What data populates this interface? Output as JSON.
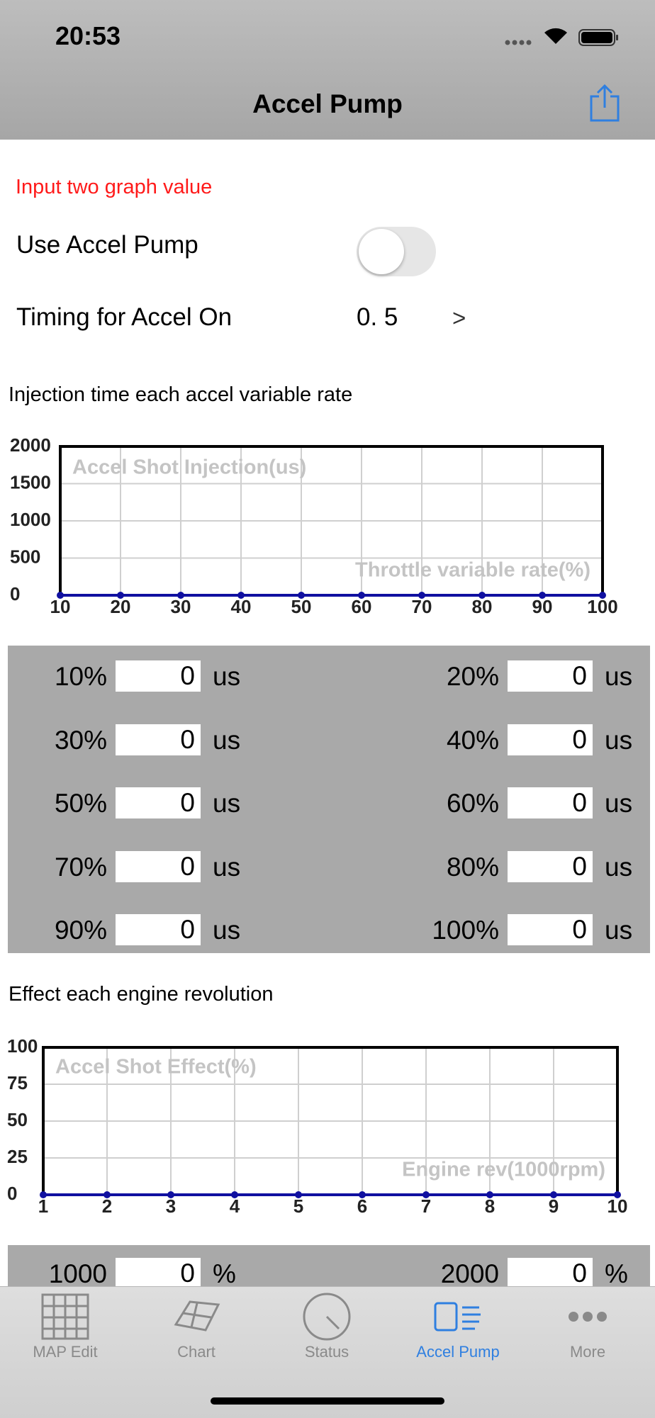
{
  "status_bar": {
    "time": "20:53"
  },
  "nav": {
    "title": "Accel Pump"
  },
  "notice": "Input two graph value",
  "settings": [
    {
      "label": "Use Accel Pump",
      "on": false
    },
    {
      "label": "Timing for Accel On",
      "value": "0. 5",
      "chevron": ">"
    }
  ],
  "charts": [
    {
      "type": "line",
      "title": "Injection time each accel variable rate",
      "y_label": "Accel Shot Injection(us)",
      "x_label": "Throttle variable rate(%)",
      "x": [
        10,
        20,
        30,
        40,
        50,
        60,
        70,
        80,
        90,
        100
      ],
      "values": [
        0,
        0,
        0,
        0,
        0,
        0,
        0,
        0,
        0,
        0
      ],
      "xlim": [
        10,
        100
      ],
      "xticks": [
        10,
        20,
        30,
        40,
        50,
        60,
        70,
        80,
        90,
        100
      ],
      "ylim": [
        0,
        2000
      ],
      "yticks": [
        0,
        500,
        1000,
        1500,
        2000
      ],
      "color": "#1010a0",
      "grid": true,
      "input_labels": [
        "10%",
        "20%",
        "30%",
        "40%",
        "50%",
        "60%",
        "70%",
        "80%",
        "90%",
        "100%"
      ],
      "input_unit": "us"
    },
    {
      "type": "line",
      "title": "Effect each engine revolution",
      "y_label": "Accel Shot Effect(%)",
      "x_label": "Engine rev(1000rpm)",
      "x": [
        1,
        2,
        3,
        4,
        5,
        6,
        7,
        8,
        9,
        10
      ],
      "values": [
        0,
        0,
        0,
        0,
        0,
        0,
        0,
        0,
        0,
        0
      ],
      "xlim": [
        1,
        10
      ],
      "xticks": [
        1,
        2,
        3,
        4,
        5,
        6,
        7,
        8,
        9,
        10
      ],
      "ylim": [
        0,
        100
      ],
      "yticks": [
        0,
        25,
        50,
        75,
        100
      ],
      "color": "#1010a0",
      "grid": true,
      "input_labels": [
        "1000",
        "2000"
      ],
      "input_unit": "%"
    }
  ],
  "tabs": [
    {
      "label": "MAP Edit"
    },
    {
      "label": "Chart"
    },
    {
      "label": "Status"
    },
    {
      "label": "Accel Pump"
    },
    {
      "label": "More"
    }
  ],
  "active_tab": 3
}
